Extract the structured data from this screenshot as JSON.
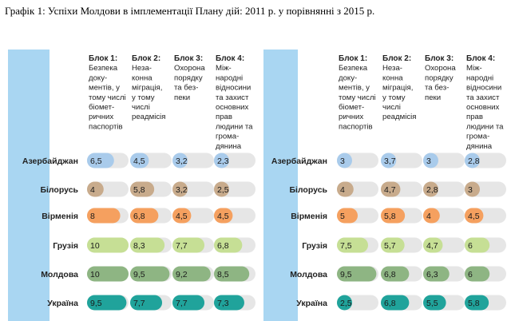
{
  "caption": "Графік 1: Успіхи Молдови в імплементації Плану дій: 2011 р. у порівнянні з 2015 р.",
  "colors": {
    "left_strip": "#a9d6f2",
    "track": "#e6e6e6",
    "row_colors": [
      "#a9cbeb",
      "#c8ab8c",
      "#f5a05f",
      "#c6df95",
      "#8eb583",
      "#20a39b"
    ]
  },
  "chart_data": [
    {
      "type": "bar",
      "title": "2011",
      "categories": [
        "Азербайджан",
        "Білорусь",
        "Вірменія",
        "Грузія",
        "Молдова",
        "Україна"
      ],
      "blocks": [
        [
          "Блок 1:",
          "Безпека",
          "доку-",
          "ментів, у",
          "тому числі",
          "біомет-",
          "ричних",
          "паспортів"
        ],
        [
          "Блок 2:",
          "Неза-",
          "конна",
          "міграція,",
          "у тому",
          "числі",
          "реадмісія"
        ],
        [
          "Блок 3:",
          "Охорона",
          "порядку",
          "та без-",
          "пеки"
        ],
        [
          "Блок 4:",
          "Між-",
          "народні",
          "відносини",
          "та захист",
          "основних",
          "прав",
          "людини та",
          "грома-",
          "дянина"
        ]
      ],
      "xlim": [
        0,
        10
      ],
      "series": [
        {
          "name": "Блок 1",
          "values": [
            "6,5",
            "4",
            "8",
            "10",
            "10",
            "9,5"
          ]
        },
        {
          "name": "Блок 2",
          "values": [
            "4,5",
            "5,8",
            "6,8",
            "8,3",
            "9,5",
            "7,7"
          ]
        },
        {
          "name": "Блок 3",
          "values": [
            "3,2",
            "3,2",
            "4,5",
            "7,7",
            "9,2",
            "7,7"
          ]
        },
        {
          "name": "Блок 4",
          "values": [
            "2,3",
            "2,5",
            "4,5",
            "6,8",
            "8,5",
            "7,3"
          ]
        }
      ]
    },
    {
      "type": "bar",
      "title": "2015",
      "categories": [
        "Азербайджан",
        "Білорусь",
        "Вірменія",
        "Грузія",
        "Молдова",
        "Україна"
      ],
      "blocks": [
        [
          "Блок 1:",
          "Безпека",
          "доку-",
          "ментів, у",
          "тому числі",
          "біомет-",
          "ричних",
          "паспортів"
        ],
        [
          "Блок 2:",
          "Неза-",
          "конна",
          "міграція,",
          "у тому",
          "числі",
          "реадмісія"
        ],
        [
          "Блок 3:",
          "Охорона",
          "порядку",
          "та без-",
          "пеки"
        ],
        [
          "Блок 4:",
          "Між-",
          "народні",
          "відносини",
          "та захист",
          "основних",
          "прав",
          "людини та",
          "грома-",
          "дянина"
        ]
      ],
      "xlim": [
        0,
        10
      ],
      "series": [
        {
          "name": "Блок 1",
          "values": [
            "3",
            "4",
            "5",
            "7,5",
            "9,5",
            "2,5"
          ]
        },
        {
          "name": "Блок 2",
          "values": [
            "3,7",
            "4,7",
            "5,8",
            "5,7",
            "6,8",
            "6,8"
          ]
        },
        {
          "name": "Блок 3",
          "values": [
            "3",
            "2,8",
            "4",
            "4,7",
            "6,3",
            "5,5"
          ]
        },
        {
          "name": "Блок 4",
          "values": [
            "2,8",
            "3",
            "4,5",
            "6",
            "6",
            "5,8"
          ]
        }
      ]
    }
  ]
}
